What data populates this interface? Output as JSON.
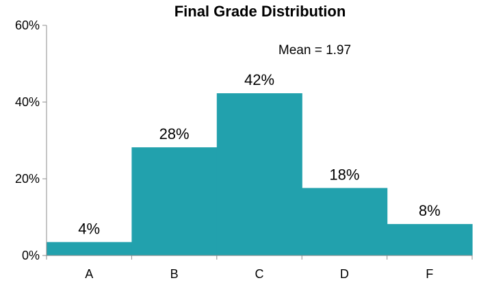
{
  "chart_data": {
    "type": "bar",
    "title": "Final Grade Distribution",
    "annotation": "Mean = 1.97",
    "categories": [
      "A",
      "B",
      "C",
      "D",
      "F"
    ],
    "values": [
      3.5,
      28.2,
      42.3,
      17.6,
      8.2
    ],
    "data_labels": [
      "4%",
      "28%",
      "42%",
      "18%",
      "8%"
    ],
    "y_ticks": [
      0,
      20,
      40,
      60
    ],
    "y_tick_labels": [
      "0%",
      "20%",
      "40%",
      "60%"
    ],
    "ylim": [
      0,
      60
    ],
    "bar_color": "#22a1ad",
    "grid": false,
    "legend": "none",
    "xlabel": "",
    "ylabel": ""
  }
}
